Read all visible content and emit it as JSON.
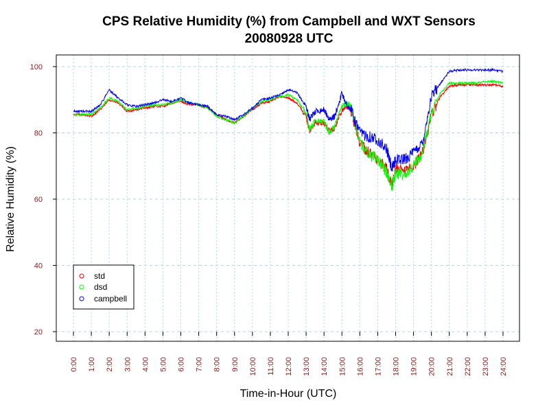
{
  "chart_data": {
    "type": "line",
    "title": "CPS Relative Humidity (%) from Campbell and WXT Sensors",
    "subtitle": "20080928  UTC",
    "xlabel": "Time-in-Hour (UTC)",
    "ylabel": "Relative Humidity (%)",
    "xlim": [
      0,
      24
    ],
    "ylim": [
      20,
      100
    ],
    "yticks": [
      20,
      40,
      60,
      80,
      100
    ],
    "xtick_labels": [
      "0:00",
      "1:00",
      "2:00",
      "3:00",
      "4:00",
      "5:00",
      "6:00",
      "7:00",
      "8:00",
      "9:00",
      "10:00",
      "11:00",
      "12:00",
      "13:00",
      "14:00",
      "15:00",
      "16:00",
      "17:00",
      "18:00",
      "19:00",
      "20:00",
      "21:00",
      "22:00",
      "23:00",
      "24:00"
    ],
    "grid": true,
    "legend_position": "bottom-left",
    "colors": {
      "std": "#ff0000",
      "dsd": "#00ff00",
      "campbell": "#0000ff",
      "grid": "#add8e6",
      "tick_label": "#8b1a1a"
    },
    "series": [
      {
        "name": "std",
        "color": "#ff0000",
        "x": [
          0,
          0.5,
          1,
          1.5,
          2,
          2.5,
          3,
          3.5,
          4,
          4.5,
          5,
          5.5,
          6,
          6.5,
          7,
          7.5,
          8,
          8.5,
          9,
          9.5,
          10,
          10.5,
          11,
          11.5,
          12,
          12.5,
          13,
          13.2,
          13.5,
          14,
          14.3,
          14.6,
          15,
          15.3,
          15.5,
          16,
          16.5,
          17,
          17.5,
          17.8,
          18,
          18.5,
          19,
          19.5,
          20,
          20.5,
          21,
          21.5,
          22,
          22.5,
          23,
          23.5,
          24
        ],
        "y": [
          85.5,
          85.5,
          85,
          87,
          90,
          89,
          86.5,
          87,
          87.5,
          88,
          88,
          89,
          89.5,
          88.5,
          88.5,
          87.5,
          85.5,
          84,
          83,
          85,
          87,
          89,
          89.5,
          91,
          90.5,
          89,
          85,
          80.5,
          83,
          83,
          80.5,
          81.5,
          87,
          88,
          87,
          77,
          74,
          72,
          69,
          64,
          69,
          68,
          70,
          74,
          85.5,
          91,
          94,
          94.5,
          94.5,
          94.5,
          94.5,
          94.5,
          94
        ]
      },
      {
        "name": "dsd",
        "color": "#00ff00",
        "x": [
          0,
          0.5,
          1,
          1.5,
          2,
          2.5,
          3,
          3.5,
          4,
          4.5,
          5,
          5.5,
          6,
          6.5,
          7,
          7.5,
          8,
          8.5,
          9,
          9.5,
          10,
          10.5,
          11,
          11.5,
          12,
          12.5,
          13,
          13.2,
          13.5,
          14,
          14.3,
          14.6,
          15,
          15.3,
          15.5,
          16,
          16.5,
          17,
          17.5,
          17.8,
          18,
          18.5,
          19,
          19.5,
          20,
          20.5,
          21,
          21.5,
          22,
          22.5,
          23,
          23.5,
          24
        ],
        "y": [
          85.5,
          85.5,
          85.5,
          87.5,
          90.5,
          89.5,
          87,
          87.5,
          88,
          88.5,
          88.5,
          89,
          90,
          89,
          88.5,
          87.5,
          85,
          84,
          83,
          85,
          87.5,
          89.5,
          90,
          91,
          91.5,
          90,
          86,
          81,
          83.5,
          83.5,
          80,
          82,
          88,
          89,
          88,
          77,
          73.5,
          72,
          68,
          64,
          68,
          67,
          70,
          74,
          86,
          92,
          95,
          95,
          95,
          95,
          95.5,
          95.5,
          95
        ]
      },
      {
        "name": "campbell",
        "color": "#0000ff",
        "x": [
          0,
          0.5,
          1,
          1.5,
          2,
          2.5,
          3,
          3.5,
          4,
          4.5,
          5,
          5.5,
          6,
          6.5,
          7,
          7.5,
          8,
          8.5,
          9,
          9.5,
          10,
          10.5,
          11,
          11.5,
          12,
          12.5,
          13,
          13.2,
          13.5,
          14,
          14.3,
          14.6,
          15,
          15.3,
          15.5,
          16,
          16.5,
          17,
          17.5,
          17.8,
          18,
          18.5,
          19,
          19.5,
          20,
          20.5,
          21,
          21.5,
          22,
          22.5,
          23,
          23.5,
          24
        ],
        "y": [
          86.5,
          86.5,
          86.5,
          88.5,
          93,
          90.5,
          88.5,
          88,
          88.5,
          89,
          90,
          89.5,
          90.5,
          89,
          88.5,
          88,
          85.5,
          85,
          84,
          85.5,
          87.5,
          90,
          90.5,
          91.5,
          93,
          92,
          88,
          84,
          86.5,
          87,
          84,
          85,
          92,
          88,
          87,
          80,
          79,
          78,
          75,
          69,
          72,
          72,
          74,
          77,
          91,
          95,
          98.5,
          99,
          99,
          99,
          99,
          99,
          98.5
        ]
      }
    ]
  }
}
